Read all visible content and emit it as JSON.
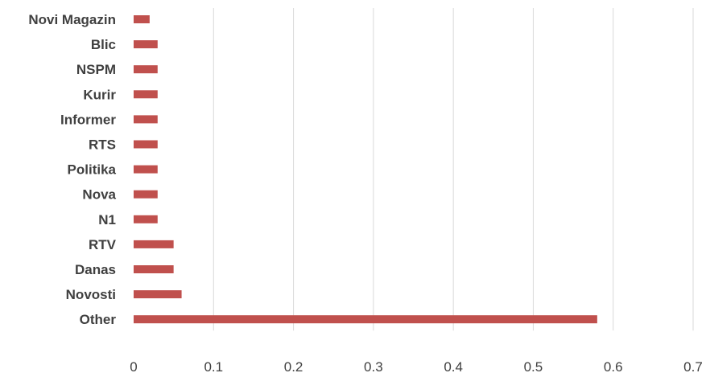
{
  "chart_data": {
    "type": "bar",
    "orientation": "horizontal",
    "categories": [
      "Novi Magazin",
      "Blic",
      "NSPM",
      "Kurir",
      "Informer",
      "RTS",
      "Politika",
      "Nova",
      "N1",
      "RTV",
      "Danas",
      "Novosti",
      "Other"
    ],
    "values": [
      0.02,
      0.03,
      0.03,
      0.03,
      0.03,
      0.03,
      0.03,
      0.03,
      0.03,
      0.05,
      0.05,
      0.06,
      0.58
    ],
    "xlim": [
      0,
      0.7
    ],
    "xticks": [
      "0",
      "0.1",
      "0.2",
      "0.3",
      "0.4",
      "0.5",
      "0.6",
      "0.7"
    ],
    "title": "",
    "xlabel": "",
    "ylabel": "",
    "grid": "vertical",
    "legend": "none",
    "bar_color": "#c0504d"
  }
}
